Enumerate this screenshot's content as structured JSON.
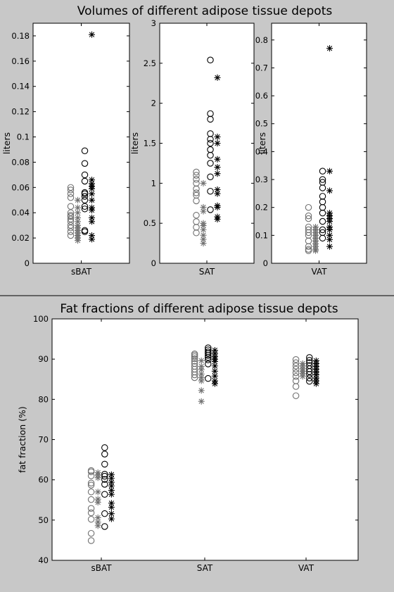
{
  "figure": {
    "background": "#c8c8c8",
    "axes_background": "#ffffff",
    "divider_color": "#000000",
    "marker_colors": {
      "dark": "#000000",
      "gray": "#707070"
    }
  },
  "chart_data": [
    {
      "type": "scatter",
      "id": "top-sbat",
      "title": "Volumes of different adipose tissue depots",
      "category": "sBAT",
      "ylabel": "liters",
      "ylim": [
        0,
        0.19
      ],
      "yticks": [
        0,
        0.02,
        0.04,
        0.06,
        0.08,
        0.1,
        0.12,
        0.14,
        0.16,
        0.18
      ],
      "ytick_labels": [
        "0",
        "0.02",
        "0.04",
        "0.06",
        "0.08",
        "0.1",
        "0.12",
        "0.14",
        "0.16",
        "0.18"
      ],
      "grid": false,
      "series": [
        {
          "marker": "circle",
          "color": "gray",
          "offset": -0.3,
          "values": [
            0.022,
            0.025,
            0.028,
            0.03,
            0.033,
            0.035,
            0.037,
            0.038,
            0.04,
            0.045,
            0.052,
            0.055,
            0.058,
            0.06
          ]
        },
        {
          "marker": "asterisk",
          "color": "gray",
          "offset": -0.1,
          "values": [
            0.018,
            0.02,
            0.022,
            0.024,
            0.026,
            0.028,
            0.03,
            0.033,
            0.036,
            0.04,
            0.044,
            0.05
          ]
        },
        {
          "marker": "circle",
          "color": "dark",
          "offset": 0.1,
          "values": [
            0.025,
            0.026,
            0.043,
            0.045,
            0.05,
            0.053,
            0.055,
            0.056,
            0.065,
            0.07,
            0.079,
            0.089
          ]
        },
        {
          "marker": "asterisk",
          "color": "dark",
          "offset": 0.3,
          "values": [
            0.019,
            0.022,
            0.033,
            0.036,
            0.042,
            0.044,
            0.05,
            0.055,
            0.059,
            0.061,
            0.063,
            0.066,
            0.181
          ]
        }
      ]
    },
    {
      "type": "scatter",
      "id": "top-sat",
      "title": "",
      "category": "SAT",
      "ylabel": "liters",
      "ylim": [
        0,
        3
      ],
      "yticks": [
        0,
        0.5,
        1,
        1.5,
        2,
        2.5,
        3
      ],
      "ytick_labels": [
        "0",
        "0.5",
        "1",
        "1.5",
        "2",
        "2.5",
        "3"
      ],
      "grid": false,
      "series": [
        {
          "marker": "circle",
          "color": "gray",
          "offset": -0.3,
          "values": [
            0.38,
            0.45,
            0.52,
            0.6,
            0.78,
            0.85,
            0.88,
            0.93,
            1.0,
            1.05,
            1.1,
            1.14
          ]
        },
        {
          "marker": "asterisk",
          "color": "gray",
          "offset": -0.1,
          "values": [
            0.25,
            0.3,
            0.35,
            0.42,
            0.47,
            0.5,
            0.65,
            0.7,
            1.0
          ]
        },
        {
          "marker": "circle",
          "color": "dark",
          "offset": 0.1,
          "values": [
            0.67,
            0.9,
            1.08,
            1.25,
            1.35,
            1.42,
            1.5,
            1.55,
            1.62,
            1.8,
            1.87,
            2.54
          ]
        },
        {
          "marker": "asterisk",
          "color": "dark",
          "offset": 0.3,
          "values": [
            0.55,
            0.58,
            0.7,
            0.72,
            0.87,
            0.92,
            1.12,
            1.2,
            1.3,
            1.5,
            1.58,
            2.32
          ]
        }
      ]
    },
    {
      "type": "scatter",
      "id": "top-vat",
      "title": "",
      "category": "VAT",
      "ylabel": "liters",
      "ylim": [
        0,
        0.86
      ],
      "yticks": [
        0,
        0.1,
        0.2,
        0.3,
        0.4,
        0.5,
        0.6,
        0.7,
        0.8
      ],
      "ytick_labels": [
        "0",
        "0.1",
        "0.2",
        "0.3",
        "0.4",
        "0.5",
        "0.6",
        "0.7",
        "0.8"
      ],
      "grid": false,
      "series": [
        {
          "marker": "circle",
          "color": "gray",
          "offset": -0.3,
          "values": [
            0.045,
            0.05,
            0.06,
            0.08,
            0.1,
            0.11,
            0.12,
            0.13,
            0.16,
            0.17,
            0.2
          ]
        },
        {
          "marker": "asterisk",
          "color": "gray",
          "offset": -0.1,
          "values": [
            0.045,
            0.05,
            0.06,
            0.07,
            0.08,
            0.09,
            0.1,
            0.11,
            0.12,
            0.13
          ]
        },
        {
          "marker": "circle",
          "color": "dark",
          "offset": 0.1,
          "values": [
            0.09,
            0.11,
            0.12,
            0.15,
            0.18,
            0.2,
            0.22,
            0.24,
            0.27,
            0.29,
            0.3,
            0.33
          ]
        },
        {
          "marker": "asterisk",
          "color": "dark",
          "offset": 0.3,
          "values": [
            0.06,
            0.085,
            0.1,
            0.12,
            0.13,
            0.15,
            0.16,
            0.17,
            0.18,
            0.26,
            0.33,
            0.77
          ]
        }
      ]
    },
    {
      "type": "scatter",
      "id": "bottom-fat-fraction",
      "title": "Fat fractions of different adipose tissue depots",
      "categories": [
        "sBAT",
        "SAT",
        "VAT"
      ],
      "ylabel": "fat fraction (%)",
      "ylim": [
        40,
        100
      ],
      "yticks": [
        40,
        50,
        60,
        70,
        80,
        90,
        100
      ],
      "ytick_labels": [
        "40",
        "50",
        "60",
        "70",
        "80",
        "90",
        "100"
      ],
      "grid": false,
      "groups": [
        {
          "category": "sBAT",
          "series": [
            {
              "marker": "circle",
              "color": "gray",
              "offset": -0.3,
              "values": [
                44.9,
                46.7,
                50.2,
                51.8,
                52.9,
                55.1,
                57.0,
                58.7,
                59.2,
                61.0,
                62.0,
                62.3
              ]
            },
            {
              "marker": "asterisk",
              "color": "gray",
              "offset": -0.1,
              "values": [
                48.6,
                49.5,
                50.6,
                54.4,
                55.2,
                57.0,
                60.5,
                61.2,
                61.8
              ]
            },
            {
              "marker": "circle",
              "color": "dark",
              "offset": 0.1,
              "values": [
                48.4,
                51.6,
                56.4,
                58.9,
                60.1,
                60.9,
                61.4,
                63.9,
                66.4,
                68.0
              ]
            },
            {
              "marker": "asterisk",
              "color": "dark",
              "offset": 0.3,
              "values": [
                50.3,
                51.6,
                53.2,
                54.2,
                56.4,
                57.4,
                58.5,
                59.4,
                60.4,
                61.3
              ]
            }
          ]
        },
        {
          "category": "SAT",
          "series": [
            {
              "marker": "circle",
              "color": "gray",
              "offset": -0.3,
              "values": [
                85.4,
                86.1,
                86.8,
                87.5,
                88.2,
                88.9,
                89.5,
                90.1,
                90.6,
                91.0,
                91.3
              ]
            },
            {
              "marker": "asterisk",
              "color": "gray",
              "offset": -0.1,
              "values": [
                79.5,
                82.2,
                84.6,
                85.4,
                86.3,
                87.4,
                88.2,
                89.6
              ]
            },
            {
              "marker": "circle",
              "color": "dark",
              "offset": 0.1,
              "values": [
                85.2,
                88.8,
                89.8,
                90.4,
                90.9,
                91.4,
                91.8,
                92.3,
                92.8
              ]
            },
            {
              "marker": "asterisk",
              "color": "dark",
              "offset": 0.3,
              "values": [
                83.9,
                84.6,
                85.8,
                87.0,
                88.3,
                89.4,
                90.0,
                90.6,
                91.4,
                92.2
              ]
            }
          ]
        },
        {
          "category": "VAT",
          "series": [
            {
              "marker": "circle",
              "color": "gray",
              "offset": -0.3,
              "values": [
                80.9,
                83.2,
                84.6,
                85.7,
                86.6,
                87.5,
                88.3,
                89.1,
                89.9
              ]
            },
            {
              "marker": "asterisk",
              "color": "gray",
              "offset": -0.1,
              "values": [
                85.7,
                86.4,
                87.0,
                87.6,
                88.3,
                88.9
              ]
            },
            {
              "marker": "circle",
              "color": "dark",
              "offset": 0.1,
              "values": [
                84.5,
                85.3,
                86.2,
                86.9,
                87.6,
                88.4,
                89.1,
                89.7,
                90.4
              ]
            },
            {
              "marker": "asterisk",
              "color": "dark",
              "offset": 0.3,
              "values": [
                83.9,
                84.6,
                85.3,
                86.1,
                86.8,
                87.5,
                88.2,
                88.9,
                89.6
              ]
            }
          ]
        }
      ]
    }
  ]
}
